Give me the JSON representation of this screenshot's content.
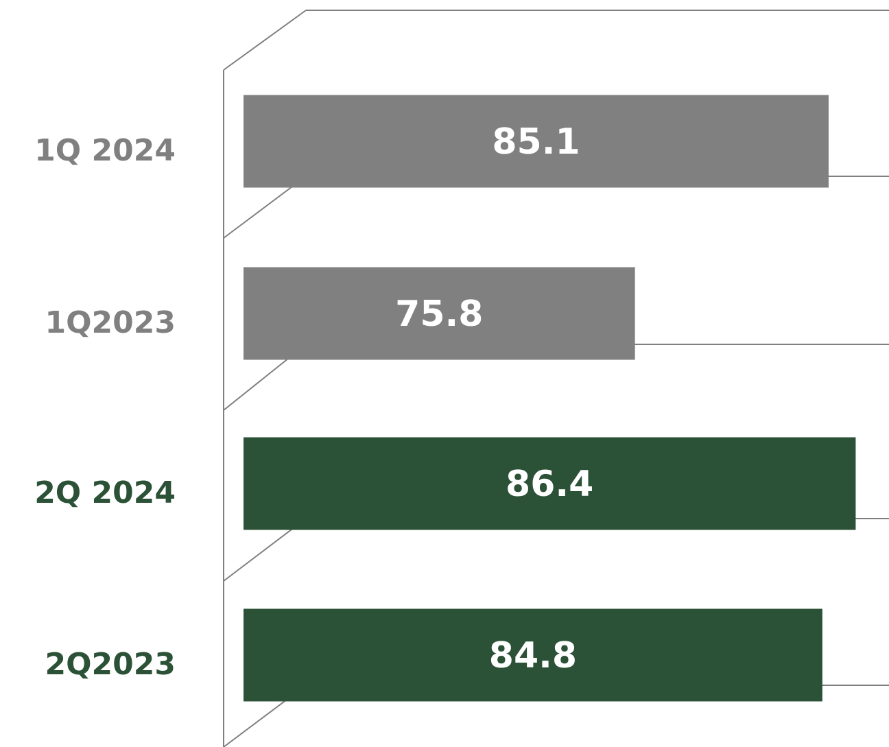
{
  "chart_data": {
    "type": "hbar",
    "categories": [
      "1Q 2024",
      "1Q2023",
      "2Q 2024",
      "2Q2023"
    ],
    "values": [
      85.1,
      75.8,
      86.4,
      84.8
    ],
    "colors": [
      "#808080",
      "#808080",
      "#2b5136",
      "#2b5136"
    ],
    "xlim": [
      57,
      88
    ]
  }
}
